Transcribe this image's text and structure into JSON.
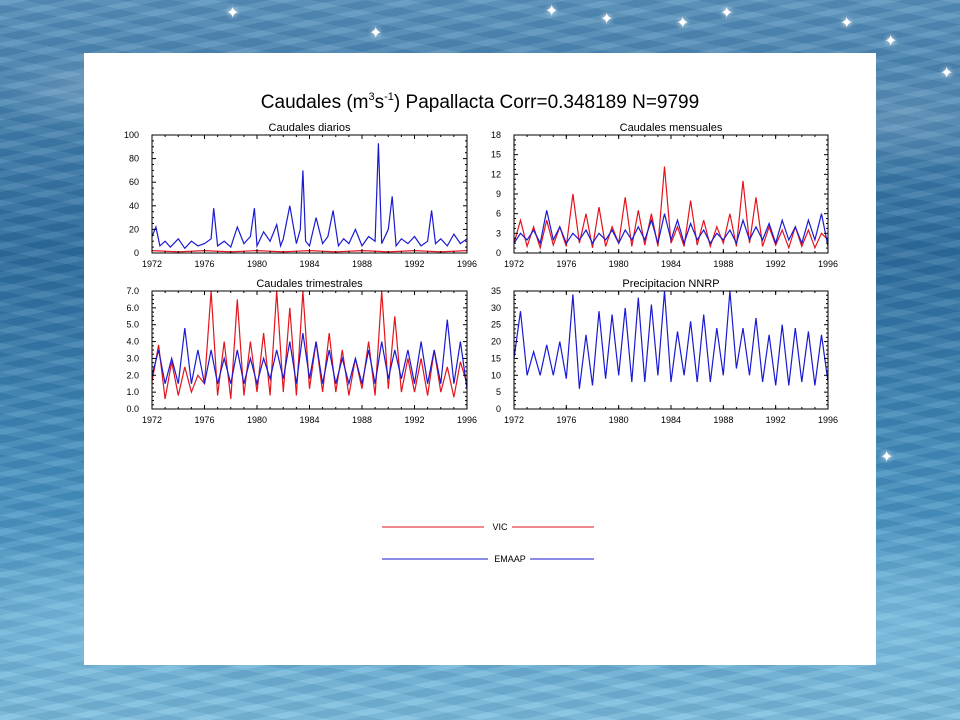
{
  "figure": {
    "title_prefix": "Caudales (m",
    "title_sup1": "3",
    "title_mid": "s",
    "title_sup2": "-1",
    "title_suffix": ") Papallacta Corr=0.348189 N=9799"
  },
  "legend": {
    "items": [
      {
        "label": "VIC",
        "color": "#e3141b"
      },
      {
        "label": "EMAAP",
        "color": "#1a1ad2"
      }
    ]
  },
  "colors": {
    "vic": "#e3141b",
    "emaap": "#1a1ad2",
    "axis": "#000000",
    "panel": "#ffffff"
  },
  "chart_data": [
    {
      "type": "line",
      "title": "Caudales diarios",
      "xlim": [
        1972,
        1996
      ],
      "ylim": [
        0,
        100
      ],
      "x_ticks": [
        "1972",
        "1976",
        "1980",
        "1984",
        "1988",
        "1992",
        "1996"
      ],
      "y_ticks": [
        "0",
        "20",
        "40",
        "60",
        "80",
        "100"
      ],
      "series": [
        {
          "name": "EMAAP",
          "color": "#1a1ad2",
          "x": [
            1972.0,
            1972.3,
            1972.6,
            1973.0,
            1973.4,
            1974.0,
            1974.5,
            1975.0,
            1975.5,
            1976.0,
            1976.5,
            1976.7,
            1977.0,
            1977.5,
            1978.0,
            1978.5,
            1979.0,
            1979.5,
            1979.8,
            1980.0,
            1980.5,
            1981.0,
            1981.5,
            1981.8,
            1982.0,
            1982.5,
            1983.0,
            1983.3,
            1983.5,
            1983.7,
            1984.0,
            1984.5,
            1985.0,
            1985.4,
            1985.8,
            1986.2,
            1986.6,
            1987.0,
            1987.5,
            1988.0,
            1988.5,
            1989.0,
            1989.25,
            1989.5,
            1990.0,
            1990.3,
            1990.6,
            1991.0,
            1991.5,
            1992.0,
            1992.5,
            1993.0,
            1993.3,
            1993.6,
            1994.0,
            1994.5,
            1995.0,
            1995.5,
            1996.0
          ],
          "y": [
            14,
            22,
            6,
            10,
            5,
            12,
            4,
            10,
            6,
            8,
            12,
            38,
            6,
            10,
            5,
            22,
            8,
            14,
            38,
            6,
            18,
            10,
            24,
            6,
            12,
            40,
            8,
            20,
            70,
            10,
            6,
            30,
            8,
            14,
            36,
            6,
            12,
            8,
            20,
            6,
            14,
            10,
            93,
            8,
            20,
            48,
            6,
            12,
            8,
            14,
            6,
            10,
            36,
            8,
            12,
            6,
            16,
            8,
            12
          ]
        },
        {
          "name": "VIC",
          "color": "#e3141b",
          "x": [
            1972.0,
            1974.0,
            1976.0,
            1978.0,
            1980.0,
            1982.0,
            1984.0,
            1986.0,
            1988.0,
            1990.0,
            1992.0,
            1994.0,
            1996.0
          ],
          "y": [
            2,
            1,
            2,
            1,
            2,
            1,
            2,
            1,
            2,
            1,
            2,
            1,
            2
          ]
        }
      ]
    },
    {
      "type": "line",
      "title": "Caudales mensuales",
      "xlim": [
        1972,
        1996
      ],
      "ylim": [
        0,
        18
      ],
      "x_ticks": [
        "1972",
        "1976",
        "1980",
        "1984",
        "1988",
        "1992",
        "1996"
      ],
      "y_ticks": [
        "0",
        "3",
        "6",
        "9",
        "12",
        "15",
        "18"
      ],
      "series": [
        {
          "name": "VIC",
          "color": "#e3141b",
          "x": [
            1972.0,
            1972.5,
            1973.0,
            1973.5,
            1974.0,
            1974.5,
            1975.0,
            1975.5,
            1976.0,
            1976.5,
            1977.0,
            1977.5,
            1978.0,
            1978.5,
            1979.0,
            1979.5,
            1980.0,
            1980.5,
            1981.0,
            1981.5,
            1982.0,
            1982.5,
            1983.0,
            1983.5,
            1984.0,
            1984.5,
            1985.0,
            1985.5,
            1986.0,
            1986.5,
            1987.0,
            1987.5,
            1988.0,
            1988.5,
            1989.0,
            1989.5,
            1990.0,
            1990.5,
            1991.0,
            1991.5,
            1992.0,
            1992.5,
            1993.0,
            1993.5,
            1994.0,
            1994.5,
            1995.0,
            1995.5,
            1996.0
          ],
          "y": [
            1.5,
            5.0,
            1.0,
            4.0,
            0.8,
            5.0,
            1.2,
            4.0,
            1.0,
            9.0,
            1.5,
            6.0,
            0.8,
            7.0,
            1.0,
            4.0,
            1.5,
            8.5,
            1.0,
            6.5,
            1.2,
            6.0,
            1.0,
            13.2,
            1.5,
            4.0,
            1.0,
            8.0,
            1.2,
            5.0,
            1.0,
            4.0,
            1.5,
            6.0,
            1.0,
            11.0,
            1.5,
            8.5,
            1.0,
            4.0,
            1.2,
            3.5,
            0.8,
            4.0,
            1.0,
            3.5,
            0.8,
            3.0,
            2.0
          ]
        },
        {
          "name": "EMAAP",
          "color": "#1a1ad2",
          "x": [
            1972.0,
            1972.5,
            1973.0,
            1973.5,
            1974.0,
            1974.5,
            1975.0,
            1975.5,
            1976.0,
            1976.5,
            1977.0,
            1977.5,
            1978.0,
            1978.5,
            1979.0,
            1979.5,
            1980.0,
            1980.5,
            1981.0,
            1981.5,
            1982.0,
            1982.5,
            1983.0,
            1983.5,
            1984.0,
            1984.5,
            1985.0,
            1985.5,
            1986.0,
            1986.5,
            1987.0,
            1987.5,
            1988.0,
            1988.5,
            1989.0,
            1989.5,
            1990.0,
            1990.5,
            1991.0,
            1991.5,
            1992.0,
            1992.5,
            1993.0,
            1993.5,
            1994.0,
            1994.5,
            1995.0,
            1995.5,
            1996.0
          ],
          "y": [
            1.5,
            3.0,
            2.0,
            3.5,
            1.5,
            6.5,
            2.0,
            4.0,
            1.5,
            3.0,
            2.0,
            3.5,
            1.5,
            3.0,
            2.0,
            3.5,
            1.5,
            3.5,
            2.0,
            4.0,
            2.0,
            5.0,
            1.5,
            6.0,
            2.0,
            5.0,
            1.5,
            4.5,
            2.0,
            3.5,
            1.5,
            3.0,
            2.0,
            3.5,
            1.5,
            5.0,
            2.0,
            4.0,
            2.0,
            4.5,
            1.5,
            5.0,
            2.0,
            4.0,
            1.5,
            5.0,
            2.0,
            6.0,
            1.0
          ]
        }
      ]
    },
    {
      "type": "line",
      "title": "Caudales trimestrales",
      "xlim": [
        1972,
        1996
      ],
      "ylim": [
        0,
        7
      ],
      "x_ticks": [
        "1972",
        "1976",
        "1980",
        "1984",
        "1988",
        "1992",
        "1996"
      ],
      "y_ticks": [
        "0.0",
        "1.0",
        "2.0",
        "3.0",
        "4.0",
        "5.0",
        "6.0",
        "7.0"
      ],
      "series": [
        {
          "name": "VIC",
          "color": "#e3141b",
          "x": [
            1972.0,
            1972.5,
            1973.0,
            1973.5,
            1974.0,
            1974.5,
            1975.0,
            1975.5,
            1976.0,
            1976.5,
            1977.0,
            1977.5,
            1978.0,
            1978.5,
            1979.0,
            1979.5,
            1980.0,
            1980.5,
            1981.0,
            1981.5,
            1982.0,
            1982.5,
            1983.0,
            1983.5,
            1984.0,
            1984.5,
            1985.0,
            1985.5,
            1986.0,
            1986.5,
            1987.0,
            1987.5,
            1988.0,
            1988.5,
            1989.0,
            1989.5,
            1990.0,
            1990.5,
            1991.0,
            1991.5,
            1992.0,
            1992.5,
            1993.0,
            1993.5,
            1994.0,
            1994.5,
            1995.0,
            1995.5,
            1996.0
          ],
          "y": [
            1.6,
            3.8,
            0.6,
            2.8,
            0.8,
            2.5,
            1.0,
            2.0,
            1.5,
            7.0,
            0.8,
            4.0,
            0.6,
            6.5,
            0.8,
            4.0,
            1.0,
            4.5,
            0.8,
            7.0,
            1.0,
            6.0,
            0.8,
            7.0,
            1.2,
            4.0,
            1.0,
            4.5,
            1.0,
            3.5,
            0.8,
            3.0,
            1.2,
            4.0,
            0.8,
            7.0,
            1.2,
            5.5,
            1.0,
            3.0,
            1.0,
            3.0,
            0.8,
            3.5,
            1.0,
            2.5,
            0.7,
            2.8,
            1.5
          ]
        },
        {
          "name": "EMAAP",
          "color": "#1a1ad2",
          "x": [
            1972.0,
            1972.5,
            1973.0,
            1973.5,
            1974.0,
            1974.5,
            1975.0,
            1975.5,
            1976.0,
            1976.5,
            1977.0,
            1977.5,
            1978.0,
            1978.5,
            1979.0,
            1979.5,
            1980.0,
            1980.5,
            1981.0,
            1981.5,
            1982.0,
            1982.5,
            1983.0,
            1983.5,
            1984.0,
            1984.5,
            1985.0,
            1985.5,
            1986.0,
            1986.5,
            1987.0,
            1987.5,
            1988.0,
            1988.5,
            1989.0,
            1989.5,
            1990.0,
            1990.5,
            1991.0,
            1991.5,
            1992.0,
            1992.5,
            1993.0,
            1993.5,
            1994.0,
            1994.5,
            1995.0,
            1995.5,
            1996.0
          ],
          "y": [
            2.0,
            3.5,
            1.5,
            3.0,
            1.5,
            4.8,
            1.5,
            3.5,
            1.5,
            3.5,
            1.5,
            3.0,
            1.5,
            3.5,
            1.5,
            3.0,
            1.5,
            3.0,
            1.8,
            3.5,
            1.8,
            4.0,
            1.5,
            4.5,
            1.8,
            4.0,
            1.5,
            3.5,
            1.5,
            3.0,
            1.5,
            3.0,
            1.5,
            3.5,
            1.5,
            4.0,
            1.8,
            3.5,
            1.8,
            3.5,
            1.5,
            4.0,
            1.5,
            3.5,
            1.5,
            5.3,
            1.5,
            4.0,
            1.2
          ]
        }
      ]
    },
    {
      "type": "line",
      "title": "Precipitacion NNRP",
      "xlim": [
        1972,
        1996
      ],
      "ylim": [
        0,
        35
      ],
      "x_ticks": [
        "1972",
        "1976",
        "1980",
        "1984",
        "1988",
        "1992",
        "1996"
      ],
      "y_ticks": [
        "0",
        "5",
        "10",
        "15",
        "20",
        "25",
        "30",
        "35"
      ],
      "series": [
        {
          "color": "#1a1ad2",
          "x": [
            1972.0,
            1972.5,
            1973.0,
            1973.5,
            1974.0,
            1974.5,
            1975.0,
            1975.5,
            1976.0,
            1976.5,
            1977.0,
            1977.5,
            1978.0,
            1978.5,
            1979.0,
            1979.5,
            1980.0,
            1980.5,
            1981.0,
            1981.5,
            1982.0,
            1982.5,
            1983.0,
            1983.5,
            1984.0,
            1984.5,
            1985.0,
            1985.5,
            1986.0,
            1986.5,
            1987.0,
            1987.5,
            1988.0,
            1988.5,
            1989.0,
            1989.5,
            1990.0,
            1990.5,
            1991.0,
            1991.5,
            1992.0,
            1992.5,
            1993.0,
            1993.5,
            1994.0,
            1994.5,
            1995.0,
            1995.5,
            1996.0
          ],
          "y": [
            15,
            29,
            10,
            17,
            10,
            19,
            10,
            20,
            9,
            34,
            6,
            22,
            7,
            29,
            9,
            28,
            10,
            30,
            8,
            33,
            8,
            31,
            10,
            35,
            8,
            23,
            10,
            26,
            8,
            28,
            8,
            24,
            10,
            35,
            12,
            24,
            10,
            27,
            8,
            22,
            7,
            25,
            7,
            24,
            8,
            23,
            7,
            22,
            8
          ]
        }
      ]
    }
  ]
}
